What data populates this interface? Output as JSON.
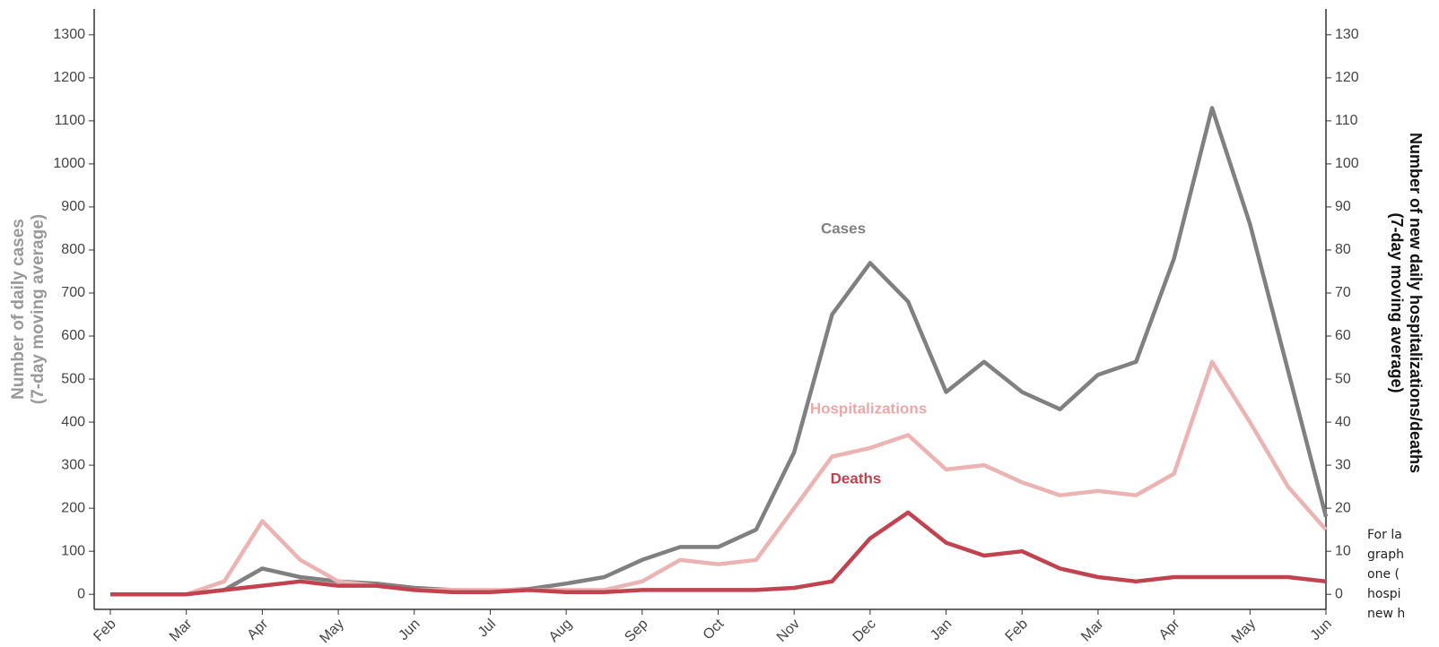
{
  "chart_data": {
    "type": "line",
    "y_label_lines": [
      "Number of daily cases",
      "(7-day moving average)"
    ],
    "y2_label_lines": [
      "Number of new daily hospitalizations/deaths",
      "(7-day moving average)"
    ],
    "categories": [
      "Feb",
      null,
      "Mar",
      null,
      "Apr",
      null,
      "May",
      null,
      "Jun",
      null,
      "Jul",
      null,
      "Aug",
      null,
      "Sep",
      null,
      "Oct",
      null,
      "Nov",
      null,
      "Dec",
      null,
      "Jan",
      null,
      "Feb",
      null,
      "Mar",
      null,
      "Apr",
      null,
      "May",
      null,
      "Jun"
    ],
    "series": [
      {
        "name": "Cases",
        "color": "#808080",
        "axis": "y",
        "values": [
          0,
          0,
          0,
          10,
          60,
          40,
          30,
          25,
          15,
          10,
          8,
          12,
          25,
          40,
          80,
          110,
          110,
          150,
          330,
          650,
          770,
          680,
          470,
          540,
          470,
          430,
          510,
          540,
          780,
          1130,
          860,
          520,
          180
        ]
      },
      {
        "name": "Hospitalizations",
        "color": "#ecb3b3",
        "axis": "y2",
        "values": [
          0,
          0,
          0,
          3,
          17,
          8,
          3,
          2,
          1,
          1,
          1,
          1,
          1,
          1,
          3,
          8,
          7,
          8,
          20,
          32,
          34,
          37,
          29,
          30,
          26,
          23,
          24,
          23,
          28,
          54,
          40,
          25,
          15
        ]
      },
      {
        "name": "Deaths",
        "color": "#c0434f",
        "axis": "y2",
        "values": [
          0,
          0,
          0,
          1,
          2,
          3,
          2,
          2,
          1,
          0.5,
          0.5,
          1,
          0.5,
          0.5,
          1,
          1,
          1,
          1,
          1.5,
          3,
          13,
          19,
          12,
          9,
          10,
          6,
          4,
          3,
          4,
          4,
          4,
          4,
          3
        ]
      }
    ],
    "ylim": [
      -35,
      1360
    ],
    "yticks": [
      0,
      100,
      200,
      300,
      400,
      500,
      600,
      700,
      800,
      900,
      1000,
      1100,
      1200,
      1300
    ],
    "y2lim": [
      -3.5,
      136
    ],
    "y2ticks": [
      0,
      10,
      20,
      30,
      40,
      50,
      60,
      70,
      80,
      90,
      100,
      110,
      120,
      130
    ],
    "side_text": [
      "For la",
      "graph",
      "one (",
      "hospi",
      "new h"
    ]
  }
}
